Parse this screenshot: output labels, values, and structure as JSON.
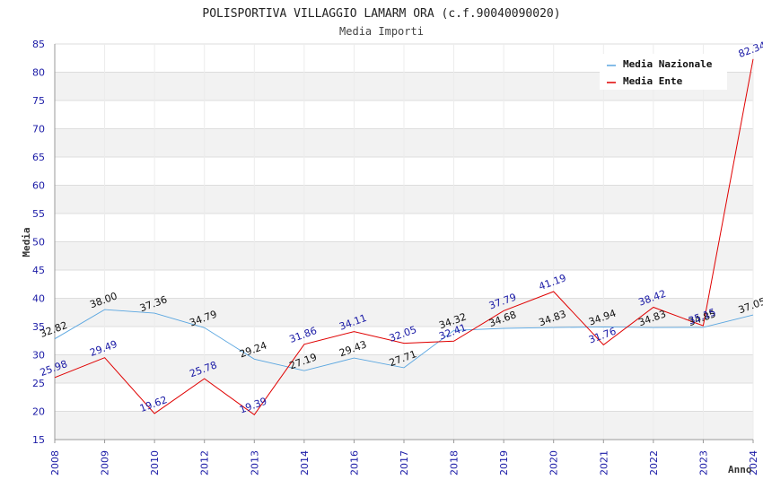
{
  "chart_data": {
    "type": "line",
    "title": "POLISPORTIVA VILLAGGIO LAMARM ORA (c.f.90040090020)",
    "subtitle": "Media Importi",
    "xlabel": "Anno",
    "ylabel": "Media",
    "ylim": [
      15,
      85
    ],
    "yticks": [
      "15",
      "20",
      "25",
      "30",
      "35",
      "40",
      "45",
      "50",
      "55",
      "60",
      "65",
      "70",
      "75",
      "80",
      "85"
    ],
    "grid": true,
    "legend_position": "top-right",
    "categories": [
      "2008",
      "2009",
      "2010",
      "2012",
      "2013",
      "2014",
      "2016",
      "2017",
      "2018",
      "2019",
      "2020",
      "2021",
      "2022",
      "2023",
      "2024"
    ],
    "series": [
      {
        "name": "Media Nazionale",
        "color": "#5aa6e0",
        "values": [
          32.82,
          38.0,
          37.36,
          34.79,
          29.24,
          27.19,
          29.43,
          27.71,
          34.32,
          34.68,
          34.83,
          34.94,
          34.83,
          34.85,
          37.05
        ],
        "labels": [
          "32.82",
          "38.00",
          "37.36",
          "34.79",
          "29.24",
          "27.19",
          "29.43",
          "27.71",
          "34.32",
          "34.68",
          "34.83",
          "34.94",
          "34.83",
          "34.85",
          "37.05"
        ]
      },
      {
        "name": "Media Ente",
        "color": "#e00000",
        "values": [
          25.98,
          29.49,
          19.62,
          25.78,
          19.39,
          31.86,
          34.11,
          32.05,
          32.41,
          37.79,
          41.19,
          31.76,
          38.42,
          35.15,
          82.34
        ],
        "labels": [
          "25.98",
          "29.49",
          "19.62",
          "25.78",
          "19.39",
          "31.86",
          "34.11",
          "32.05",
          "32.41",
          "37.79",
          "41.19",
          "31.76",
          "38.42",
          "35.15",
          "82.34"
        ]
      }
    ]
  }
}
